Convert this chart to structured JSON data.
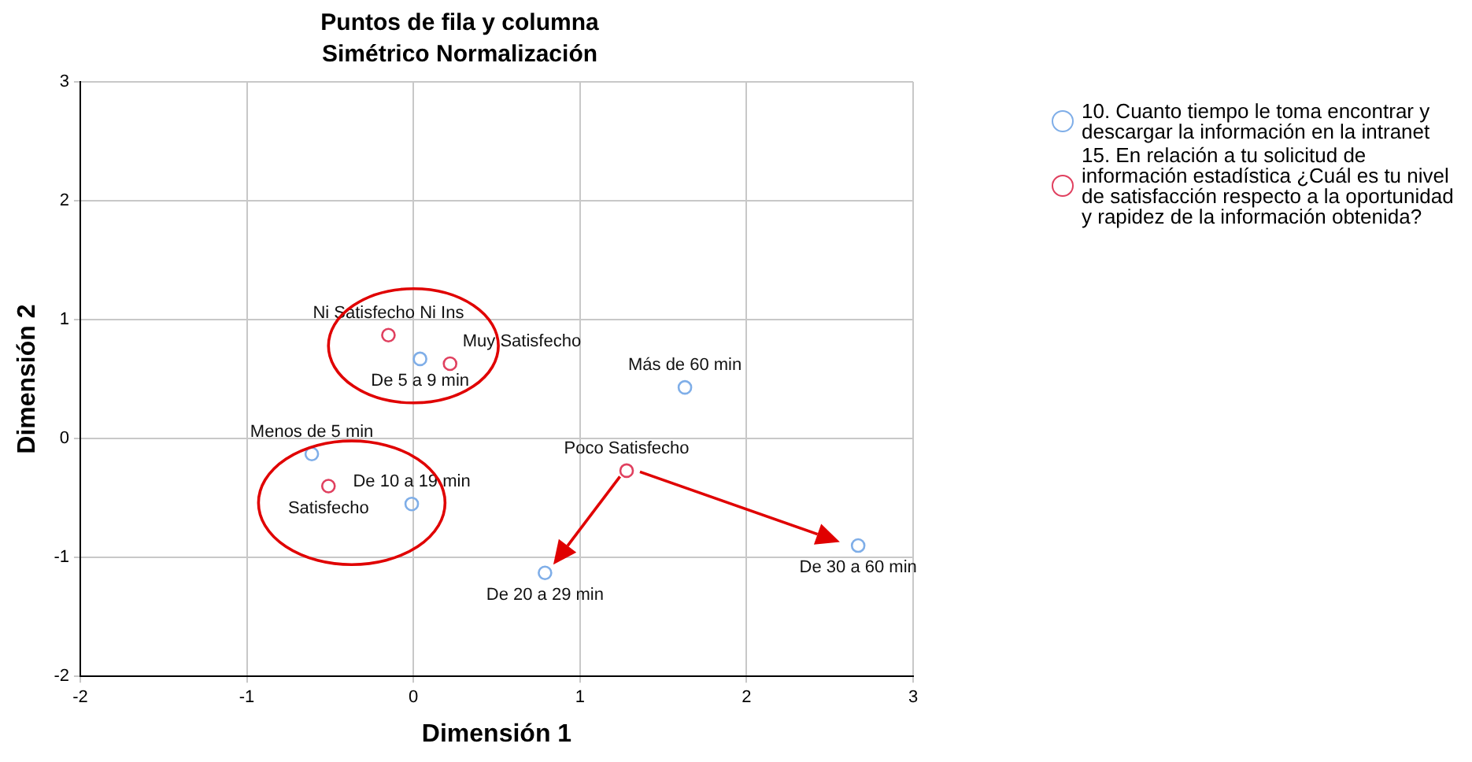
{
  "chart_data": {
    "type": "scatter",
    "title": "Puntos de fila y columna",
    "subtitle": "Simétrico Normalización",
    "xlabel": "Dimensión 1",
    "ylabel": "Dimensión 2",
    "xlim": [
      -2,
      3
    ],
    "xticks": [
      -2,
      -1,
      0,
      1,
      2,
      3
    ],
    "ylim": [
      -2,
      3
    ],
    "yticks": [
      -2,
      -1,
      0,
      1,
      2,
      3
    ],
    "grid": true,
    "legend": "right",
    "marker": "circle",
    "series": [
      {
        "name": "10. Cuanto tiempo le toma encontrar y descargar la información en la intranet",
        "color": "#7faee8",
        "x": [
          0.04,
          1.63,
          -0.61,
          -0.01,
          0.79,
          2.67
        ],
        "values": [
          0.67,
          0.43,
          -0.13,
          -0.55,
          -1.13,
          -0.9
        ]
      },
      {
        "name": "15. En relación a tu solicitud de información estadística ¿Cuál es tu nivel de satisfacción respecto a la oportunidad y rapidez de la información obtenida?",
        "color": "#e0405f",
        "x": [
          -0.15,
          0.22,
          -0.51,
          1.28
        ],
        "values": [
          0.87,
          0.63,
          -0.4,
          -0.27
        ]
      }
    ],
    "annotations": [
      {
        "text": "De 5 a 9 min",
        "x": 0.04,
        "y": 0.67
      },
      {
        "text": "Más de 60 min",
        "x": 1.63,
        "y": 0.43
      },
      {
        "text": "Menos de 5 min",
        "x": -0.61,
        "y": -0.13
      },
      {
        "text": "De 10 a 19 min",
        "x": -0.01,
        "y": -0.55
      },
      {
        "text": "De 20 a 29 min",
        "x": 0.79,
        "y": -1.13
      },
      {
        "text": "De 30 a 60 min",
        "x": 2.67,
        "y": -0.9
      },
      {
        "text": "Ni Satisfecho Ni Ins",
        "x": -0.15,
        "y": 0.87
      },
      {
        "text": "Muy Satisfecho",
        "x": 0.22,
        "y": 0.63
      },
      {
        "text": "Satisfecho",
        "x": -0.51,
        "y": -0.4
      },
      {
        "text": "Poco Satisfecho",
        "x": 1.28,
        "y": -0.27
      }
    ]
  }
}
